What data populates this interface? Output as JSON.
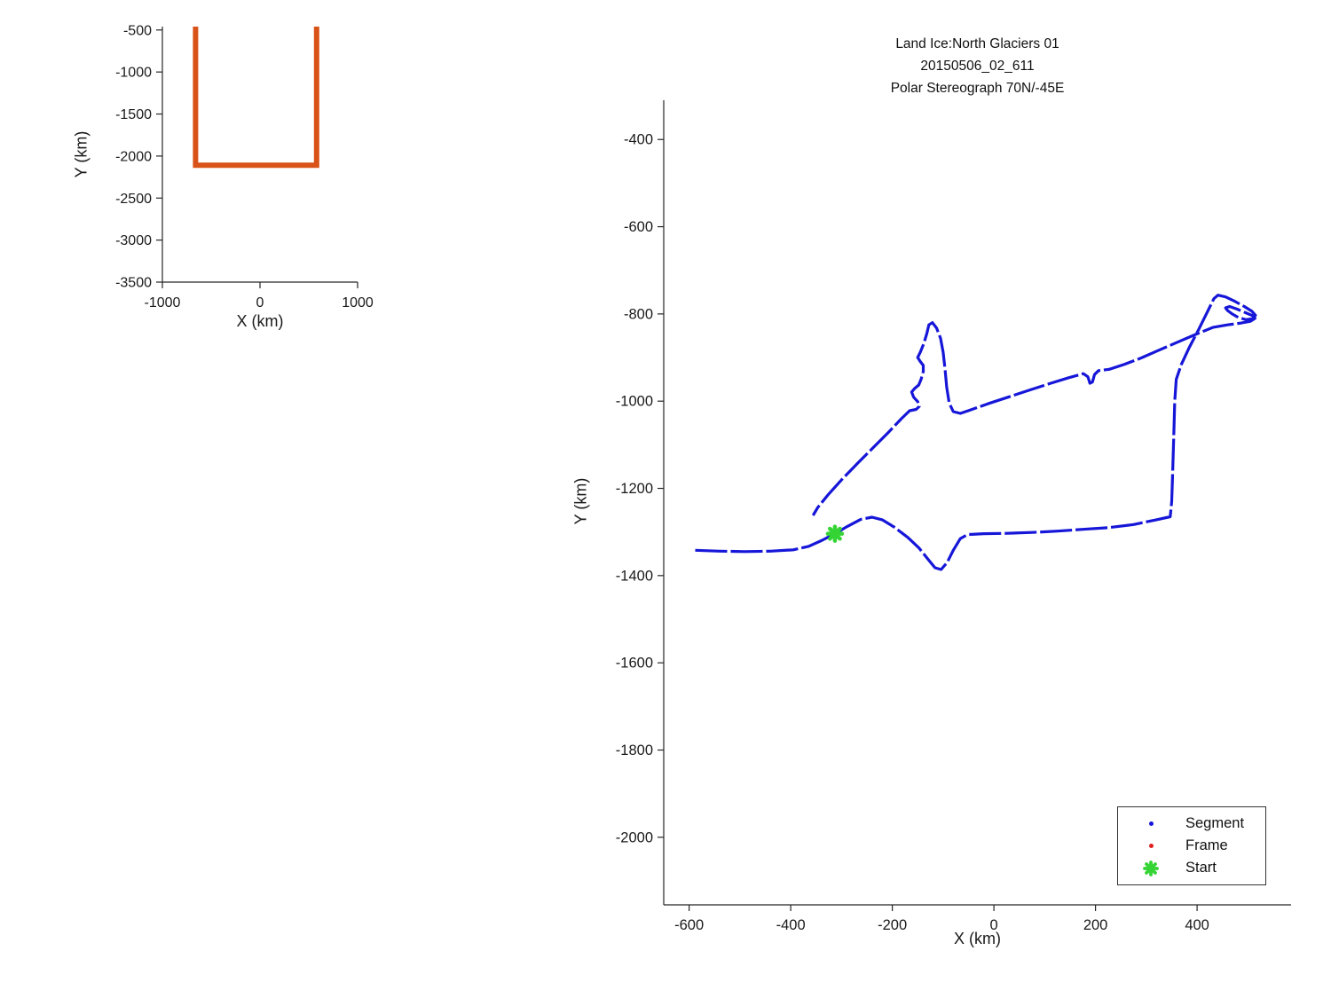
{
  "chart_data": [
    {
      "id": "overview-locator",
      "type": "line",
      "xlabel": "X (km)",
      "ylabel": "Y (km)",
      "xlim": [
        -1000,
        1000
      ],
      "ylim": [
        -3500,
        -460
      ],
      "x_ticks": [
        -1000,
        0,
        1000
      ],
      "y_ticks": [
        -500,
        -1000,
        -1500,
        -2000,
        -2500,
        -3000,
        -3500
      ],
      "grid": false,
      "line_color": "#d95319",
      "line_width": 6,
      "series": [
        {
          "name": "mission-region-outline",
          "points": [
            [
              -660,
              -460
            ],
            [
              -660,
              -2110
            ],
            [
              580,
              -2110
            ],
            [
              580,
              -460
            ]
          ]
        }
      ]
    },
    {
      "id": "ground-track",
      "type": "line",
      "title_lines": [
        "Land Ice:North Glaciers 01",
        "20150506_02_611",
        "Polar Stereograph 70N/-45E"
      ],
      "xlabel": "X (km)",
      "ylabel": "Y (km)",
      "xlim": [
        -650,
        585
      ],
      "ylim": [
        -2155,
        -310
      ],
      "x_ticks": [
        -600,
        -400,
        -200,
        0,
        200,
        400
      ],
      "y_ticks": [
        -400,
        -600,
        -800,
        -1000,
        -1200,
        -1400,
        -1600,
        -1800,
        -2000
      ],
      "grid": false,
      "track_color": "#1616d9",
      "track_width": 3.2,
      "start_color": "#35d435",
      "frame_color": "#e02020",
      "start_point": [
        -313,
        -1304
      ],
      "legend": [
        {
          "label": "Segment",
          "marker": "dot",
          "color": "#1616d9"
        },
        {
          "label": "Frame",
          "marker": "dot",
          "color": "#e02020"
        },
        {
          "label": "Start",
          "marker": "asterisk",
          "color": "#35d435"
        }
      ],
      "track": [
        [
          -588,
          -1342
        ],
        [
          -540,
          -1344
        ],
        [
          -490,
          -1345
        ],
        [
          -440,
          -1344
        ],
        [
          -395,
          -1341
        ],
        [
          -365,
          -1333
        ],
        [
          -338,
          -1319
        ],
        [
          -313,
          -1304
        ],
        [
          -288,
          -1287
        ],
        [
          -262,
          -1271
        ],
        [
          -240,
          -1266
        ],
        [
          -220,
          -1272
        ],
        [
          -196,
          -1289
        ],
        [
          -170,
          -1312
        ],
        [
          -148,
          -1336
        ],
        [
          -130,
          -1362
        ],
        [
          -116,
          -1382
        ],
        [
          -104,
          -1386
        ],
        [
          -92,
          -1370
        ],
        [
          -80,
          -1342
        ],
        [
          -66,
          -1315
        ],
        [
          -52,
          -1306
        ],
        [
          -20,
          -1304
        ],
        [
          25,
          -1303
        ],
        [
          75,
          -1301
        ],
        [
          125,
          -1298
        ],
        [
          175,
          -1294
        ],
        [
          225,
          -1290
        ],
        [
          275,
          -1283
        ],
        [
          320,
          -1272
        ],
        [
          347,
          -1265
        ],
        [
          350,
          -1230
        ],
        [
          352,
          -1160
        ],
        [
          354,
          -1080
        ],
        [
          356,
          -1000
        ],
        [
          359,
          -950
        ],
        [
          369,
          -916
        ],
        [
          385,
          -876
        ],
        [
          403,
          -836
        ],
        [
          420,
          -796
        ],
        [
          433,
          -765
        ],
        [
          441,
          -757
        ],
        [
          456,
          -761
        ],
        [
          474,
          -771
        ],
        [
          493,
          -783
        ],
        [
          508,
          -794
        ],
        [
          515,
          -803
        ],
        [
          509,
          -811
        ],
        [
          496,
          -813
        ],
        [
          481,
          -808
        ],
        [
          469,
          -800
        ],
        [
          460,
          -792
        ],
        [
          456,
          -786
        ],
        [
          464,
          -783
        ],
        [
          479,
          -789
        ],
        [
          495,
          -797
        ],
        [
          509,
          -804
        ],
        [
          514,
          -810
        ],
        [
          505,
          -817
        ],
        [
          486,
          -821
        ],
        [
          460,
          -825
        ],
        [
          431,
          -831
        ],
        [
          397,
          -847
        ],
        [
          361,
          -865
        ],
        [
          325,
          -883
        ],
        [
          290,
          -901
        ],
        [
          256,
          -916
        ],
        [
          227,
          -927
        ],
        [
          206,
          -930
        ],
        [
          198,
          -939
        ],
        [
          194,
          -956
        ],
        [
          189,
          -959
        ],
        [
          185,
          -944
        ],
        [
          176,
          -937
        ],
        [
          148,
          -946
        ],
        [
          112,
          -959
        ],
        [
          72,
          -974
        ],
        [
          30,
          -990
        ],
        [
          -12,
          -1006
        ],
        [
          -48,
          -1021
        ],
        [
          -66,
          -1028
        ],
        [
          -80,
          -1024
        ],
        [
          -88,
          -1004
        ],
        [
          -93,
          -968
        ],
        [
          -96,
          -928
        ],
        [
          -100,
          -888
        ],
        [
          -105,
          -856
        ],
        [
          -113,
          -832
        ],
        [
          -121,
          -820
        ],
        [
          -128,
          -825
        ],
        [
          -132,
          -845
        ],
        [
          -138,
          -868
        ],
        [
          -145,
          -888
        ],
        [
          -150,
          -900
        ],
        [
          -145,
          -909
        ],
        [
          -139,
          -918
        ],
        [
          -139,
          -932
        ],
        [
          -143,
          -949
        ],
        [
          -148,
          -963
        ],
        [
          -156,
          -971
        ],
        [
          -162,
          -979
        ],
        [
          -158,
          -991
        ],
        [
          -150,
          -1001
        ],
        [
          -147,
          -1012
        ],
        [
          -153,
          -1019
        ],
        [
          -166,
          -1022
        ],
        [
          -182,
          -1040
        ],
        [
          -208,
          -1072
        ],
        [
          -238,
          -1107
        ],
        [
          -268,
          -1142
        ],
        [
          -298,
          -1178
        ],
        [
          -326,
          -1214
        ],
        [
          -347,
          -1244
        ],
        [
          -356,
          -1262
        ]
      ]
    }
  ]
}
